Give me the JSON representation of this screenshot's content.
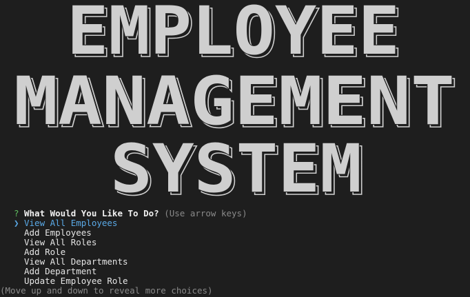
{
  "banner": {
    "lines": [
      "EMPLOYEE",
      "MANAGEMENT",
      "SYSTEM"
    ]
  },
  "prompt": {
    "symbol": "?",
    "question": "What Would You Like To Do?",
    "hint": "(Use arrow keys)"
  },
  "menu": {
    "pointer": "❯",
    "choices": [
      "View All Employees",
      "Add Employees",
      "View All Roles",
      "Add Role",
      "View All Departments",
      "Add Department",
      "Update Employee Role"
    ]
  },
  "footer": "(Move up and down to reveal more choices)"
}
